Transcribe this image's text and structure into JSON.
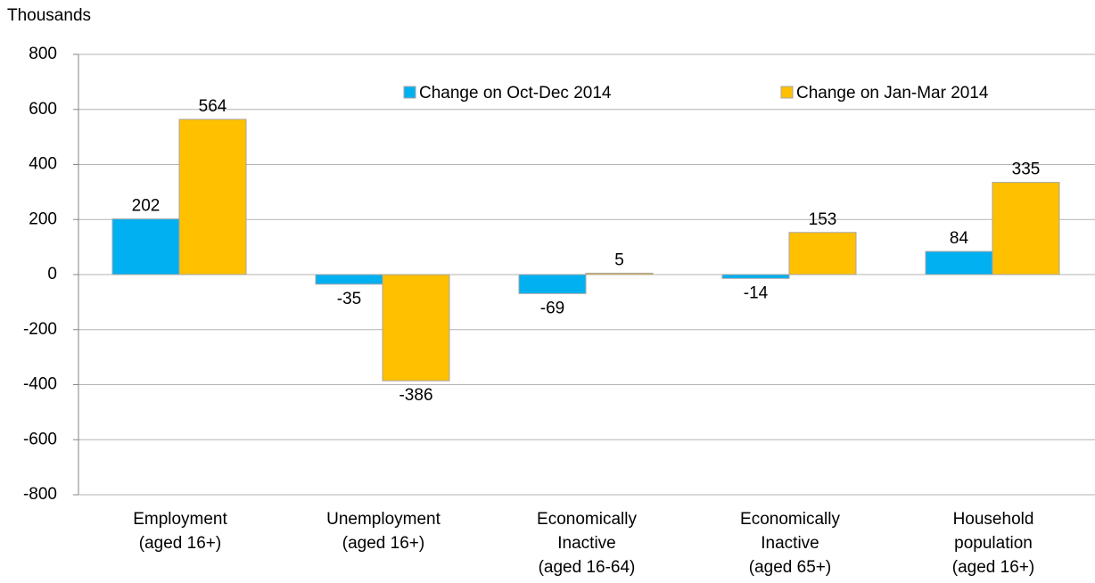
{
  "chart_data": {
    "type": "bar",
    "y_label": "Thousands",
    "categories": [
      [
        "Employment",
        "(aged 16+)"
      ],
      [
        "Unemployment",
        "(aged 16+)"
      ],
      [
        "Economically",
        "Inactive",
        "(aged 16-64)"
      ],
      [
        "Economically",
        "Inactive",
        "(aged 65+)"
      ],
      [
        "Household",
        "population",
        "(aged 16+)"
      ]
    ],
    "series": [
      {
        "name": "Change on Oct-Dec 2014",
        "color": "#00b0f0",
        "values": [
          202,
          -35,
          -69,
          -14,
          84
        ]
      },
      {
        "name": "Change on Jan-Mar 2014",
        "color": "#ffc000",
        "values": [
          564,
          -386,
          5,
          153,
          335
        ]
      }
    ],
    "ylim": [
      -800,
      800
    ],
    "yticks": [
      -800,
      -600,
      -400,
      -200,
      0,
      200,
      400,
      600,
      800
    ],
    "grid": true,
    "legend": "top"
  }
}
